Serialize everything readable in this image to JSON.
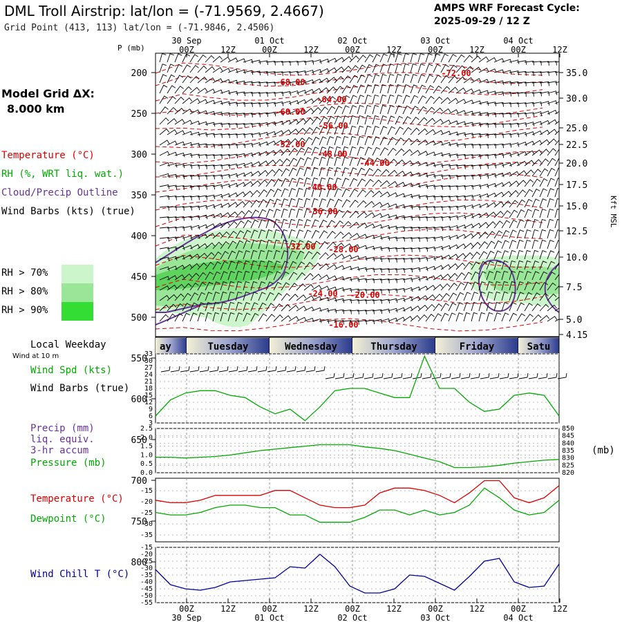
{
  "header": {
    "title": "DML Troll Airstrip:  lat/lon = (-71.9569, 2.4667)",
    "grid_point": "Grid Point (413, 113) lat/lon = (-71.9846, 2.4506)",
    "cycle_label": "AMPS WRF Forecast Cycle:",
    "cycle_value": "2025-09-29 / 12  Z"
  },
  "left_panel": {
    "model_grid_label": "Model Grid ΔX:",
    "model_grid_value": "8.000 km",
    "legend": {
      "temperature": "Temperature (°C)",
      "rh": "RH (%, WRT liq. wat.)",
      "cloud": "Cloud/Precip Outline",
      "wind": "Wind Barbs (kts) (true)"
    },
    "rh_thresholds": [
      "RH > 70%",
      "RH > 80%",
      "RH > 90%"
    ],
    "colors": {
      "temperature": "#dd0000",
      "rh": "#00aa00",
      "cloud": "#663399",
      "rh70": "#ccf5cc",
      "rh80": "#99e699",
      "rh90": "#33dd33"
    }
  },
  "chart_data": [
    {
      "id": "cross-section",
      "type": "heatmap",
      "ylabel": "P (mb)",
      "right_label": "Kft MSL",
      "pressure_ticks": [
        "200",
        "250",
        "300",
        "350",
        "400",
        "450",
        "500",
        "550",
        "600",
        "650",
        "700",
        "750",
        "800"
      ],
      "pressure_values": [
        200,
        250,
        300,
        350,
        400,
        450,
        500,
        550,
        600,
        650,
        700,
        750,
        800
      ],
      "kft_ticks": [
        "35.0",
        "30.0",
        "25.0",
        "22.5",
        "20.0",
        "17.5",
        "15.0",
        "12.5",
        "10.0",
        "7.5",
        "5.0",
        "4.15"
      ],
      "time_ticks": [
        "00Z",
        "12Z",
        "00Z",
        "12Z",
        "00Z",
        "12Z",
        "00Z",
        "12Z",
        "00Z",
        "12Z"
      ],
      "date_ticks": [
        "30 Sep",
        "01 Oct",
        "02 Oct",
        "03 Oct",
        "04 Oct"
      ],
      "temperature_labels": [
        "-72.00",
        "-68.00",
        "-64.00",
        "-60.00",
        "-56.00",
        "-52.00",
        "-48.00",
        "-44.00",
        "-40.00",
        "-36.00",
        "-32.00",
        "-28.00",
        "-24.00",
        "-20.00",
        "-16.00"
      ]
    },
    {
      "id": "wind-speed",
      "type": "line",
      "title": "Wind Spd (kts)",
      "subtitle": "Wind Barbs (true)",
      "note": "Wind at 10 m",
      "weekday_title": "Local Weekday",
      "weekdays": [
        "ay",
        "Tuesday",
        "Wednesday",
        "Thursday",
        "Friday",
        "Satu"
      ],
      "y_ticks": [
        "33",
        "30",
        "27",
        "24",
        "21",
        "18",
        "15",
        "12",
        "9",
        "6",
        "3"
      ],
      "ylim": [
        3,
        33
      ],
      "values": [
        6,
        13,
        16,
        17,
        17,
        15,
        14,
        10,
        7,
        9,
        4,
        10,
        17,
        18,
        18,
        16,
        14,
        14,
        32,
        18,
        18,
        12,
        8,
        9,
        15,
        16,
        15,
        6
      ]
    },
    {
      "id": "precip-pressure",
      "type": "line",
      "labels": [
        "Precip (mm)",
        "liq. equiv.",
        "3-hr accum",
        "Pressure (mb)"
      ],
      "units_right": "(mb)",
      "left_ticks": [
        "2.5",
        "2.0",
        "1.5",
        "1.0",
        "0.5",
        "0.0"
      ],
      "right_ticks": [
        "850",
        "845",
        "840",
        "835",
        "830",
        "825",
        "820"
      ],
      "ylim_left": [
        0,
        2.5
      ],
      "ylim_right": [
        820,
        850
      ],
      "pressure": [
        830.5,
        830.5,
        830,
        830.5,
        831,
        832,
        833.5,
        835,
        836,
        837,
        838,
        839,
        839,
        839,
        837.5,
        836.5,
        835,
        832.5,
        830,
        827.5,
        823.5,
        823.5,
        824,
        825,
        826.5,
        827.5,
        828.5,
        829
      ]
    },
    {
      "id": "temp-dewpoint",
      "type": "line",
      "labels": [
        "Temperature (°C)",
        "Dewpoint (°C)"
      ],
      "y_ticks": [
        "-15",
        "-20",
        "-25",
        "-30",
        "-35"
      ],
      "ylim": [
        -35,
        -10
      ],
      "temperature": [
        -21,
        -22,
        -22,
        -21,
        -19,
        -19,
        -19,
        -19,
        -17,
        -17,
        -20,
        -23,
        -24,
        -24,
        -23,
        -18,
        -16,
        -16,
        -17,
        -19,
        -22,
        -18,
        -13,
        -13,
        -20,
        -22,
        -20,
        -15
      ],
      "dewpoint": [
        -26,
        -27,
        -27,
        -26,
        -24,
        -23,
        -23,
        -24,
        -24,
        -27,
        -27,
        -30,
        -30,
        -30,
        -28,
        -25,
        -25,
        -27,
        -25,
        -27,
        -26,
        -23,
        -16,
        -20,
        -25,
        -27,
        -26,
        -21
      ]
    },
    {
      "id": "wind-chill",
      "type": "line",
      "label": "Wind Chill T (°C)",
      "y_ticks": [
        "-15",
        "-20",
        "-25",
        "-30",
        "-35",
        "-40",
        "-45",
        "-50",
        "-55"
      ],
      "ylim": [
        -55,
        -15
      ],
      "values": [
        -31,
        -42,
        -45,
        -46,
        -44,
        -40,
        -39,
        -38,
        -37,
        -29,
        -30,
        -20,
        -29,
        -43,
        -48,
        -48,
        -45,
        -35,
        -36,
        -41,
        -46,
        -36,
        -25,
        -23,
        -40,
        -44,
        -43,
        -27
      ],
      "time_ticks": [
        "00Z",
        "12Z",
        "00Z",
        "12Z",
        "00Z",
        "12Z",
        "00Z",
        "12Z",
        "00Z",
        "12Z"
      ],
      "date_ticks": [
        "30 Sep",
        "01 Oct",
        "02 Oct",
        "03 Oct",
        "04 Oct"
      ]
    }
  ]
}
